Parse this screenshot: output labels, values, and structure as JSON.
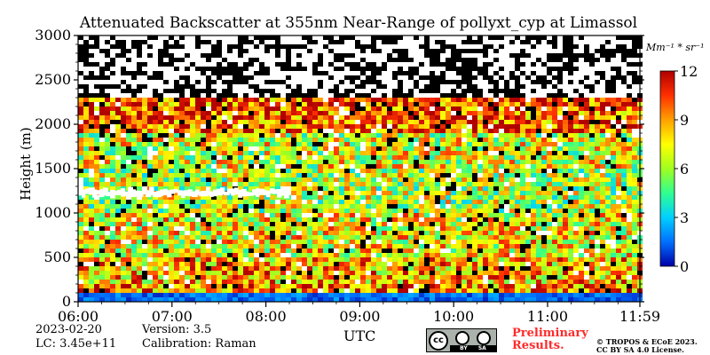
{
  "chart_data": {
    "type": "heatmap",
    "title": "Attenuated Backscatter at 355nm Near-Range of pollyxt_cyp at Limassol",
    "xlabel": "UTC",
    "ylabel": "Height (m)",
    "x_ticks": [
      "06:00",
      "07:00",
      "08:00",
      "09:00",
      "10:00",
      "11:00",
      "11:59"
    ],
    "x_range": [
      "06:00",
      "11:59"
    ],
    "y_ticks": [
      0,
      500,
      1000,
      1500,
      2000,
      2500,
      3000
    ],
    "ylim": [
      0,
      3000
    ],
    "colorbar": {
      "unit": "Mm⁻¹ * sr⁻¹",
      "ticks": [
        0,
        3,
        6,
        9,
        12
      ],
      "range": [
        0,
        12
      ],
      "colormap": [
        "#0000a8",
        "#0070ff",
        "#00d0ff",
        "#30ff90",
        "#a0ff20",
        "#ffff00",
        "#ffa000",
        "#ff3000",
        "#b00000"
      ]
    },
    "layers": [
      {
        "from_m": 0,
        "to_m": 100,
        "level": 0.5
      },
      {
        "from_m": 100,
        "to_m": 200,
        "level": 9.5
      },
      {
        "from_m": 200,
        "to_m": 500,
        "level": 8.5
      },
      {
        "from_m": 500,
        "to_m": 1000,
        "level": 7.5
      },
      {
        "from_m": 1000,
        "to_m": 1500,
        "level": 6.5
      },
      {
        "from_m": 1500,
        "to_m": 1900,
        "level": 7.0
      },
      {
        "from_m": 1900,
        "to_m": 2300,
        "level": 10.0
      },
      {
        "from_m": 2300,
        "to_m": 3000,
        "level": null
      }
    ],
    "cloud": {
      "height_m": 1230,
      "time_range": [
        "06:00",
        "08:15"
      ]
    }
  },
  "footer": {
    "date": "2023-02-20",
    "lc": "LC: 3.45e+11",
    "version": "Version: 3.5",
    "calibration": "Calibration: Raman",
    "preliminary_line1": "Preliminary",
    "preliminary_line2": "Results.",
    "copyright_line1": "© TROPOS & ECoE 2023.",
    "copyright_line2": "CC BY SA 4.0 License.",
    "cc_by": "BY",
    "cc_sa": "SA",
    "cc_logo": "cc"
  }
}
